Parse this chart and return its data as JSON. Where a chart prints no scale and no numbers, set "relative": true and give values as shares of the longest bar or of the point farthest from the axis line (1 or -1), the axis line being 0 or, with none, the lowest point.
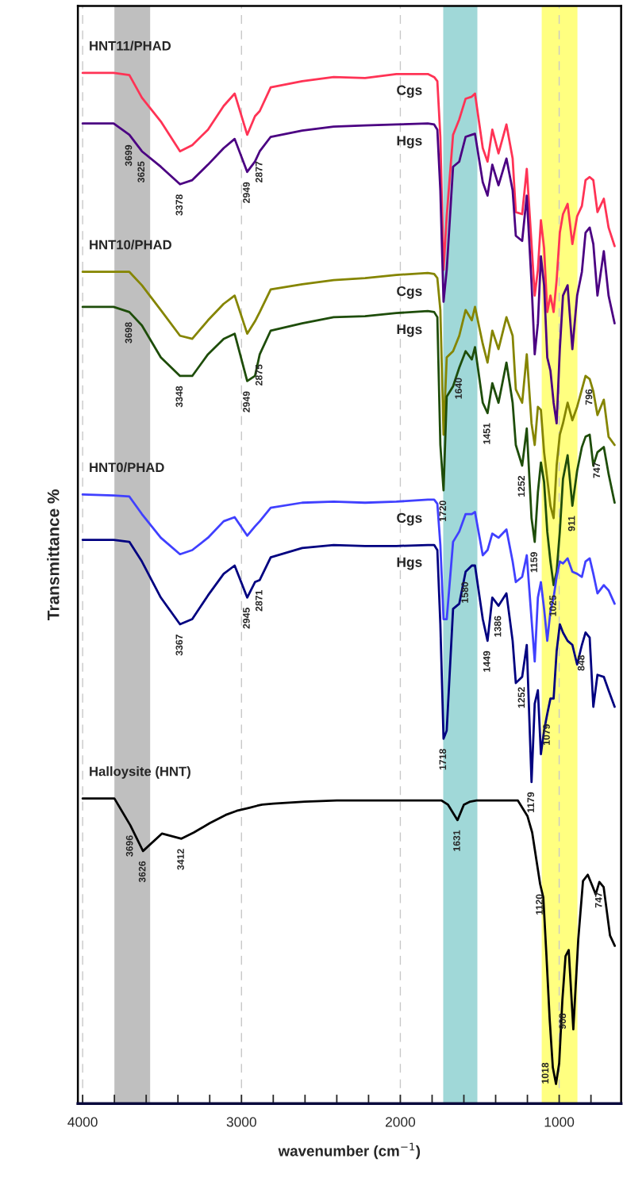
{
  "chart_data": {
    "type": "line",
    "relative": true,
    "xlabel": "wavenumber (cm$^{−1}$)",
    "ylabel": "Transmittance %",
    "xlim": [
      4030,
      610
    ],
    "xticks": [
      4000,
      {
        "value": 3800,
        "label": null
      },
      {
        "value": 3600,
        "label": null
      },
      {
        "value": 3400,
        "label": null
      },
      {
        "value": 3200,
        "label": null
      },
      3000,
      {
        "value": 2800,
        "label": null
      },
      {
        "value": 2600,
        "label": null
      },
      {
        "value": 2400,
        "label": null
      },
      {
        "value": 2200,
        "label": null
      },
      2000,
      {
        "value": 1800,
        "label": null
      },
      {
        "value": 1600,
        "label": null
      },
      {
        "value": 1400,
        "label": null
      },
      {
        "value": 1200,
        "label": null
      },
      1000,
      {
        "value": 800,
        "label": null
      }
    ],
    "grid": "x",
    "bands": [
      {
        "axis": "x",
        "from": 3800,
        "to": 3575,
        "color": "#bfbfbf"
      },
      {
        "axis": "x",
        "from": 1730,
        "to": 1515,
        "color": "#a0d8d8"
      },
      {
        "axis": "x",
        "from": 1110,
        "to": 885,
        "color": "#ffff80"
      }
    ],
    "x": [
      4000,
      3805,
      3706,
      3627,
      3508,
      3387,
      3310,
      3211,
      3112,
      3043,
      2964,
      2915,
      2885,
      2816,
      2618,
      2420,
      2222,
      2025,
      1827,
      1787,
      1767,
      1748,
      1728,
      1708,
      1668,
      1629,
      1589,
      1550,
      1530,
      1481,
      1451,
      1421,
      1382,
      1332,
      1293,
      1273,
      1233,
      1204,
      1174,
      1154,
      1134,
      1115,
      1095,
      1075,
      1055,
      1035,
      1016,
      996,
      976,
      947,
      917,
      887,
      857,
      834,
      808,
      785,
      759,
      719,
      689,
      651
    ],
    "series": [
      {
        "name": "Cgs",
        "color": "#ff3355",
        "values": [
          1.0,
          1.0,
          0.998,
          0.976,
          0.953,
          0.924,
          0.93,
          0.945,
          0.968,
          0.98,
          0.94,
          0.958,
          0.963,
          0.986,
          0.992,
          0.996,
          0.995,
          0.999,
          0.999,
          0.996,
          0.992,
          0.938,
          0.809,
          0.861,
          0.94,
          0.955,
          0.975,
          0.977,
          0.98,
          0.927,
          0.914,
          0.945,
          0.922,
          0.95,
          0.917,
          0.865,
          0.863,
          0.907,
          0.834,
          0.784,
          0.809,
          0.857,
          0.83,
          0.768,
          0.784,
          0.768,
          0.799,
          0.845,
          0.863,
          0.873,
          0.834,
          0.861,
          0.871,
          0.896,
          0.899,
          0.896,
          0.865,
          0.878,
          0.85,
          0.832
        ]
      },
      {
        "name": "Hgs",
        "color": "#4b0082",
        "values": [
          0.951,
          0.951,
          0.94,
          0.924,
          0.909,
          0.892,
          0.896,
          0.911,
          0.927,
          0.936,
          0.904,
          0.914,
          0.924,
          0.938,
          0.944,
          0.948,
          0.949,
          0.95,
          0.951,
          0.95,
          0.945,
          0.886,
          0.778,
          0.809,
          0.909,
          0.914,
          0.938,
          0.94,
          0.941,
          0.894,
          0.881,
          0.911,
          0.891,
          0.917,
          0.886,
          0.842,
          0.837,
          0.881,
          0.796,
          0.727,
          0.757,
          0.822,
          0.794,
          0.724,
          0.711,
          0.68,
          0.66,
          0.732,
          0.784,
          0.794,
          0.732,
          0.784,
          0.807,
          0.845,
          0.85,
          0.834,
          0.784,
          0.827,
          0.784,
          0.757
        ]
      },
      {
        "name": "Cgs",
        "color": "#858500",
        "values": [
          0.807,
          0.807,
          0.807,
          0.794,
          0.77,
          0.745,
          0.742,
          0.76,
          0.776,
          0.784,
          0.747,
          0.759,
          0.768,
          0.79,
          0.795,
          0.799,
          0.801,
          0.804,
          0.806,
          0.805,
          0.801,
          0.77,
          0.649,
          0.724,
          0.73,
          0.745,
          0.77,
          0.76,
          0.773,
          0.737,
          0.719,
          0.75,
          0.732,
          0.763,
          0.745,
          0.693,
          0.68,
          0.727,
          0.66,
          0.639,
          0.676,
          0.673,
          0.632,
          0.606,
          0.58,
          0.568,
          0.619,
          0.649,
          0.66,
          0.68,
          0.663,
          0.676,
          0.693,
          0.706,
          0.703,
          0.691,
          0.668,
          0.683,
          0.647,
          0.639
        ]
      },
      {
        "name": "Hgs",
        "color": "#1e4d0a",
        "values": [
          0.773,
          0.773,
          0.768,
          0.755,
          0.724,
          0.706,
          0.706,
          0.727,
          0.742,
          0.747,
          0.701,
          0.706,
          0.727,
          0.75,
          0.757,
          0.763,
          0.764,
          0.767,
          0.769,
          0.768,
          0.763,
          0.639,
          0.595,
          0.686,
          0.696,
          0.714,
          0.73,
          0.722,
          0.734,
          0.68,
          0.67,
          0.699,
          0.68,
          0.719,
          0.68,
          0.639,
          0.619,
          0.655,
          0.568,
          0.545,
          0.593,
          0.622,
          0.603,
          0.555,
          0.526,
          0.503,
          0.516,
          0.555,
          0.606,
          0.629,
          0.58,
          0.614,
          0.637,
          0.647,
          0.649,
          0.619,
          0.632,
          0.637,
          0.611,
          0.583
        ]
      },
      {
        "name": "Cgs",
        "color": "#4040ff",
        "values": [
          0.591,
          0.59,
          0.589,
          0.572,
          0.549,
          0.533,
          0.537,
          0.549,
          0.565,
          0.569,
          0.551,
          0.56,
          0.565,
          0.578,
          0.583,
          0.584,
          0.583,
          0.584,
          0.586,
          0.586,
          0.582,
          0.542,
          0.47,
          0.47,
          0.545,
          0.555,
          0.572,
          0.572,
          0.574,
          0.532,
          0.537,
          0.553,
          0.549,
          0.557,
          0.526,
          0.506,
          0.511,
          0.532,
          0.47,
          0.429,
          0.491,
          0.506,
          0.48,
          0.449,
          0.478,
          0.491,
          0.511,
          0.526,
          0.524,
          0.529,
          0.516,
          0.514,
          0.511,
          0.526,
          0.529,
          0.514,
          0.495,
          0.503,
          0.498,
          0.485
        ]
      },
      {
        "name": "Hgs",
        "color": "#000080",
        "values": [
          0.547,
          0.547,
          0.545,
          0.526,
          0.491,
          0.465,
          0.47,
          0.493,
          0.514,
          0.522,
          0.491,
          0.506,
          0.508,
          0.53,
          0.539,
          0.542,
          0.541,
          0.541,
          0.542,
          0.542,
          0.537,
          0.465,
          0.354,
          0.362,
          0.48,
          0.485,
          0.516,
          0.522,
          0.522,
          0.47,
          0.449,
          0.491,
          0.483,
          0.495,
          0.449,
          0.408,
          0.414,
          0.445,
          0.312,
          0.388,
          0.401,
          0.339,
          0.362,
          0.378,
          0.393,
          0.393,
          0.439,
          0.465,
          0.457,
          0.449,
          0.445,
          0.426,
          0.445,
          0.457,
          0.452,
          0.385,
          0.416,
          0.414,
          0.401,
          0.385
        ]
      },
      {
        "color": "#000000",
        "x": [
          4000,
          3800,
          3700,
          3620,
          3500,
          3378,
          3300,
          3200,
          3100,
          3030,
          2950,
          2900,
          2870,
          2800,
          2600,
          2400,
          2200,
          2000,
          1800,
          1760,
          1740,
          1720,
          1700,
          1680,
          1640,
          1600,
          1560,
          1520,
          1500,
          1450,
          1420,
          1390,
          1350,
          1300,
          1260,
          1240,
          1200,
          1170,
          1140,
          1120,
          1100,
          1080,
          1060,
          1040,
          1020,
          1000,
          980,
          960,
          940,
          911,
          880,
          850,
          820,
          796,
          770,
          747,
          720,
          680,
          650
        ],
        "values": [
          0.296,
          0.296,
          0.27,
          0.245,
          0.262,
          0.257,
          0.263,
          0.272,
          0.28,
          0.284,
          0.287,
          0.289,
          0.29,
          0.291,
          0.293,
          0.294,
          0.294,
          0.294,
          0.294,
          0.294,
          0.294,
          0.292,
          0.29,
          0.285,
          0.275,
          0.29,
          0.293,
          0.294,
          0.294,
          0.294,
          0.294,
          0.294,
          0.294,
          0.294,
          0.294,
          0.289,
          0.279,
          0.263,
          0.233,
          0.213,
          0.2,
          0.143,
          0.082,
          0.035,
          0.019,
          0.039,
          0.1,
          0.143,
          0.149,
          0.072,
          0.159,
          0.216,
          0.222,
          0.213,
          0.203,
          0.215,
          0.21,
          0.163,
          0.153
        ]
      }
    ],
    "annotations": [
      "HNT11/PHAD",
      "HNT10/PHAD",
      "HNT0/PHAD",
      "Halloysite (HNT)",
      {
        "text": "3699",
        "x": 3706,
        "y": 0.94
      },
      {
        "text": "3625",
        "x": 3627,
        "y": 0.924
      },
      {
        "text": "3378",
        "x": 3387,
        "y": 0.892
      },
      {
        "text": "2949",
        "x": 2964,
        "y": 0.904
      },
      {
        "text": "2877",
        "x": 2885,
        "y": 0.924
      },
      {
        "text": "3698",
        "x": 3706,
        "y": 0.768
      },
      {
        "text": "3348",
        "x": 3387,
        "y": 0.706
      },
      {
        "text": "2949",
        "x": 2964,
        "y": 0.701
      },
      {
        "text": "2875",
        "x": 2885,
        "y": 0.727
      },
      {
        "text": "1640",
        "x": 1629,
        "y": 0.714
      },
      {
        "text": "1720",
        "x": 1728,
        "y": 0.595
      },
      {
        "text": "1451",
        "x": 1451,
        "y": 0.67
      },
      {
        "text": "1252",
        "x": 1233,
        "y": 0.619
      },
      {
        "text": "1159",
        "x": 1154,
        "y": 0.545
      },
      {
        "text": "796",
        "x": 808,
        "y": 0.703
      },
      {
        "text": "747",
        "x": 759,
        "y": 0.632
      },
      {
        "text": "911",
        "x": 917,
        "y": 0.58
      },
      {
        "text": "1025",
        "x": 1035,
        "y": 0.503
      },
      {
        "text": "1580",
        "x": 1589,
        "y": 0.516
      },
      {
        "text": "1449",
        "x": 1451,
        "y": 0.449
      },
      {
        "text": "1386",
        "x": 1382,
        "y": 0.483
      },
      {
        "text": "1252",
        "x": 1233,
        "y": 0.414
      },
      {
        "text": "848",
        "x": 857,
        "y": 0.445
      },
      {
        "text": "2945",
        "x": 2964,
        "y": 0.491
      },
      {
        "text": "2871",
        "x": 2885,
        "y": 0.508
      },
      {
        "text": "3367",
        "x": 3387,
        "y": 0.465
      },
      {
        "text": "1079",
        "x": 1075,
        "y": 0.378
      },
      {
        "text": "1718",
        "x": 1728,
        "y": 0.354
      },
      {
        "text": "1179",
        "x": 1174,
        "y": 0.312
      },
      {
        "text": "3696",
        "x": 3700,
        "y": 0.27
      },
      {
        "text": "3626",
        "x": 3620,
        "y": 0.245
      },
      {
        "text": "3412",
        "x": 3378,
        "y": 0.257
      },
      {
        "text": "1631",
        "x": 1640,
        "y": 0.275
      },
      {
        "text": "1120",
        "x": 1120,
        "y": 0.213
      },
      {
        "text": "747",
        "x": 747,
        "y": 0.215
      },
      {
        "text": "1018",
        "x": 1020,
        "y": 0.019
      },
      {
        "text": "908",
        "x": 911,
        "y": 0.072
      }
    ]
  }
}
